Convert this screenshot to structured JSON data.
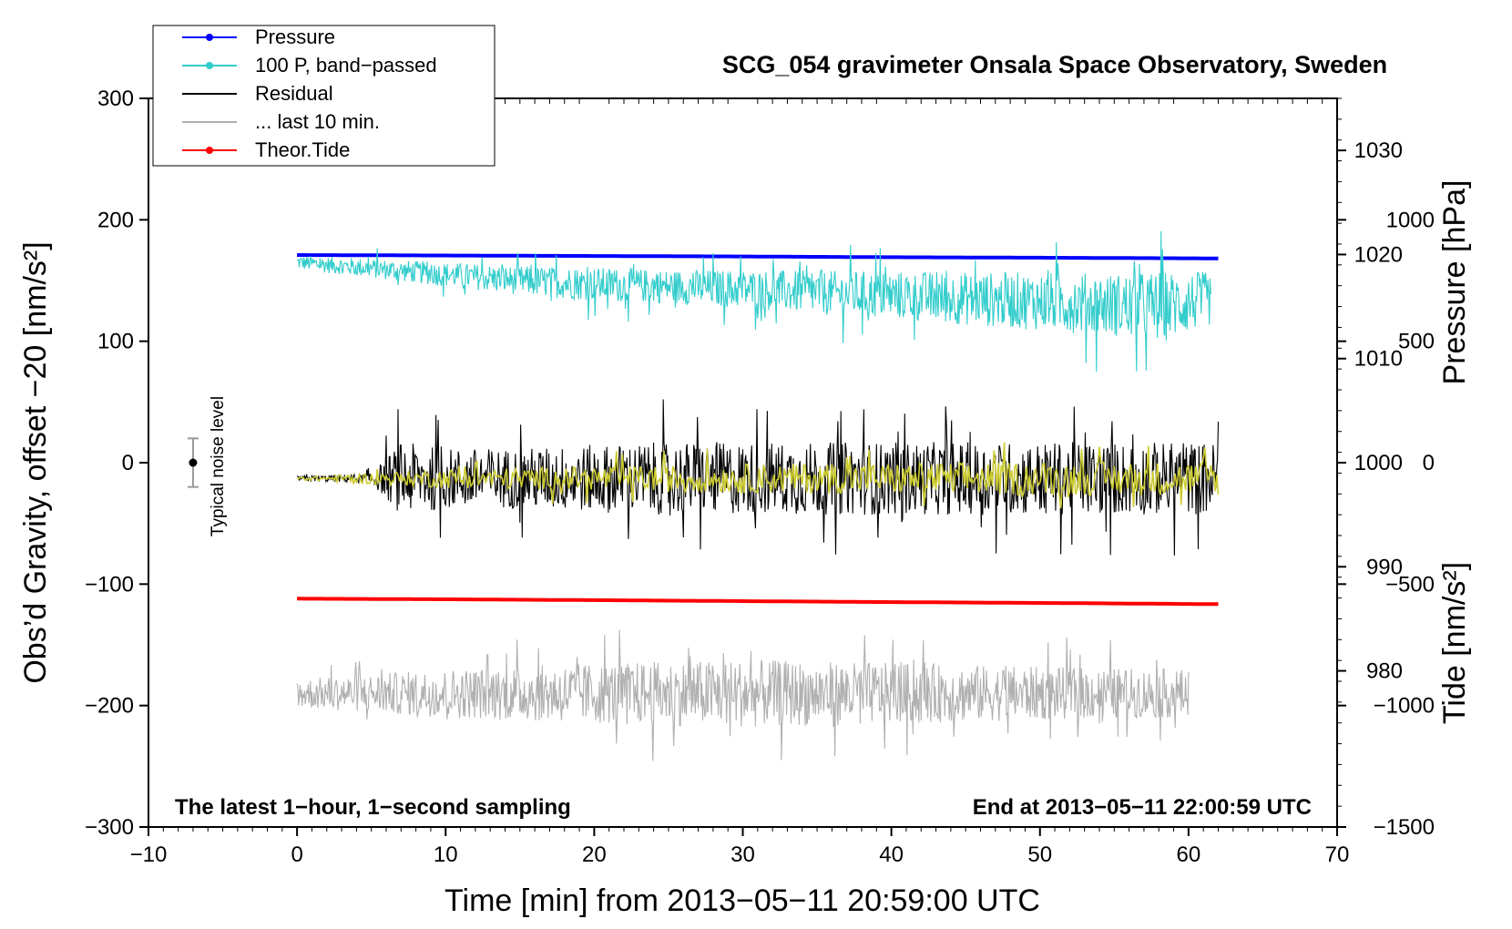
{
  "chart_data": {
    "type": "line",
    "title": "SCG_054 gravimeter Onsala Space Observatory, Sweden",
    "xlabel": "Time [min] from 2013−05−11 20:59:00 UTC",
    "ylabel_left": "Obs’d Gravity, offset −20 [nm/s²]",
    "ylabel_pressure": "Pressure [hPa]",
    "ylabel_tide": "Tide [nm/s²]",
    "xlim": [
      -10,
      70
    ],
    "ylim_left": [
      -300,
      300
    ],
    "ylim_pressure": [
      965,
      1035
    ],
    "ylim_tide": [
      -1500,
      1500
    ],
    "x_ticks": [
      -10,
      0,
      10,
      20,
      30,
      40,
      50,
      60,
      70
    ],
    "x_tick_labels": [
      "−10",
      "0",
      "10",
      "20",
      "30",
      "40",
      "50",
      "60",
      "70"
    ],
    "left_ticks": [
      300,
      200,
      100,
      0,
      -100,
      -200,
      -300
    ],
    "left_tick_labels": [
      "300",
      "200",
      "100",
      "0",
      "−100",
      "−200",
      "−300"
    ],
    "pressure_ticks": [
      1030,
      1020,
      1010,
      1000,
      990,
      980
    ],
    "pressure_tick_labels": [
      "1030",
      "1020",
      "1010",
      "1000",
      "990",
      "980"
    ],
    "tide_ticks": [
      1000,
      500,
      0,
      -500,
      -1000,
      -1500
    ],
    "tide_tick_labels": [
      "1000",
      "500",
      "0",
      "−500",
      "−1000",
      "−1500"
    ],
    "annotation_left": "The latest 1−hour, 1−second sampling",
    "annotation_right": "End at 2013−05−11 22:00:59 UTC",
    "noise_label": "Typical noise level",
    "noise_bar": {
      "x": -7,
      "center": 0,
      "low": -20,
      "high": 20
    },
    "legend": {
      "position": "top-left",
      "entries": [
        {
          "label": "Pressure",
          "color": "#0000ff",
          "marker": true
        },
        {
          "label": "100 P, band−passed",
          "color": "#33cccc",
          "marker": true
        },
        {
          "label": "Residual",
          "color": "#000000",
          "marker": false
        },
        {
          "label": "... last 10 min.",
          "color": "#b0b0b0",
          "marker": false
        },
        {
          "label": "Theor.Tide",
          "color": "#ff0000",
          "marker": true
        }
      ]
    },
    "series": [
      {
        "name": "Pressure",
        "color": "#0000ff",
        "axis": "left",
        "x": [
          0,
          10,
          20,
          30,
          40,
          50,
          62
        ],
        "y": [
          171,
          170.6,
          170.2,
          169.8,
          169.2,
          168.8,
          168.2
        ]
      },
      {
        "name": "100 P, band−passed",
        "color": "#33cccc",
        "axis": "left",
        "x": [
          0,
          5,
          10,
          15,
          20,
          25,
          30,
          35,
          40,
          45,
          50,
          55,
          58,
          61.5
        ],
        "y": [
          165,
          160,
          155,
          150,
          147,
          145,
          143,
          140,
          138,
          135,
          133,
          130,
          128,
          135
        ],
        "amplitude": [
          6,
          8,
          10,
          12,
          14,
          14,
          16,
          18,
          20,
          22,
          24,
          26,
          30,
          22
        ]
      },
      {
        "name": "Residual",
        "color": "#000000",
        "axis": "left",
        "x": [
          0,
          5,
          7,
          10,
          15,
          20,
          25,
          30,
          35,
          40,
          45,
          50,
          55,
          62
        ],
        "y": [
          -13,
          -13,
          -13,
          -13,
          -13,
          -13,
          -13,
          -13,
          -13,
          -13,
          -13,
          -13,
          -13,
          -13
        ],
        "amplitude": [
          2,
          4,
          30,
          25,
          25,
          28,
          30,
          30,
          30,
          30,
          30,
          30,
          30,
          30
        ]
      },
      {
        "name": "Residual (smoothed)",
        "color": "#cccc33",
        "axis": "left",
        "x": [
          0,
          7,
          10,
          20,
          30,
          40,
          50,
          62
        ],
        "y": [
          -13,
          -13,
          -13,
          -13,
          -13,
          -13,
          -13,
          -13
        ],
        "amplitude": [
          1,
          6,
          8,
          10,
          12,
          13,
          14,
          14
        ]
      },
      {
        "name": "... last 10 min.",
        "color": "#b0b0b0",
        "axis": "left",
        "x": [
          0,
          10,
          20,
          30,
          40,
          50,
          60
        ],
        "y": [
          -190,
          -190,
          -190,
          -190,
          -190,
          -190,
          -190
        ],
        "amplitude": [
          12,
          20,
          25,
          28,
          25,
          22,
          20
        ]
      },
      {
        "name": "Theor.Tide",
        "color": "#ff0000",
        "axis": "left",
        "x": [
          0,
          10,
          20,
          30,
          40,
          50,
          62
        ],
        "y": [
          -112,
          -112.5,
          -113.2,
          -114,
          -114.8,
          -115.5,
          -116.5
        ]
      }
    ]
  }
}
